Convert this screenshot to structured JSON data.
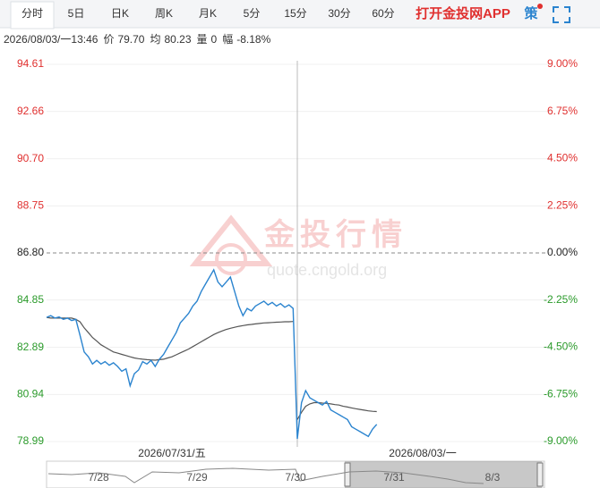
{
  "tabs": [
    "分时",
    "5日",
    "日K",
    "周K",
    "月K",
    "5分",
    "15分",
    "30分",
    "60分"
  ],
  "active_tab": 0,
  "app_link": "打开金投网APP",
  "strategy": "策",
  "info": {
    "time": "2026/08/03/一13:46",
    "items": [
      {
        "label": "价",
        "value": "79.70"
      },
      {
        "label": "均",
        "value": "80.23"
      },
      {
        "label": "量",
        "value": "0"
      },
      {
        "label": "幅",
        "value": "-8.18%"
      }
    ]
  },
  "watermark": {
    "title": "金投行情",
    "url": "quote.cngold.org"
  },
  "chart_data": {
    "type": "line",
    "ylim": [
      78.99,
      94.61
    ],
    "yticks": [
      94.61,
      92.66,
      {
        "value": 90.7,
        "label": "90.70"
      },
      88.75,
      {
        "value": 86.8,
        "label": "86.80"
      },
      84.85,
      82.89,
      80.94,
      78.99
    ],
    "y2lim": [
      -9,
      9
    ],
    "y2ticks": [
      {
        "value": 9,
        "label": "9.00%"
      },
      {
        "value": 6.75,
        "label": "6.75%"
      },
      {
        "value": 4.5,
        "label": "4.50%"
      },
      {
        "value": 2.25,
        "label": "2.25%"
      },
      {
        "value": 0,
        "label": "0.00%"
      },
      {
        "value": -2.25,
        "label": "-2.25%"
      },
      {
        "value": -4.5,
        "label": "-4.50%"
      },
      {
        "value": -6.75,
        "label": "-6.75%"
      },
      {
        "value": -9,
        "label": "-9.00%"
      }
    ],
    "reference_line": 86.8,
    "price_color": "#2b84cf",
    "average_color": "#555555",
    "up_color": "#e0302f",
    "down_color": "#2a9a2a",
    "days": [
      {
        "label": "2026/07/31/五",
        "price": [
          84.13,
          84.2,
          84.1,
          84.15,
          84.05,
          84.1,
          84.0,
          84.05,
          83.4,
          82.7,
          82.5,
          82.2,
          82.35,
          82.2,
          82.3,
          82.15,
          82.25,
          82.1,
          81.9,
          82.0,
          81.3,
          81.8,
          81.95,
          82.3,
          82.2,
          82.35,
          82.1,
          82.4,
          82.6,
          82.9,
          83.2,
          83.5,
          83.9,
          84.1,
          84.3,
          84.6,
          84.8,
          85.2,
          85.5,
          85.8,
          86.1,
          85.6,
          85.4,
          85.6,
          85.8,
          85.2,
          84.6,
          84.2,
          84.5,
          84.4,
          84.6,
          84.7,
          84.8,
          84.65,
          84.75,
          84.6,
          84.7,
          84.55,
          84.65,
          84.5
        ],
        "average": [
          84.13,
          84.1,
          84.1,
          84.1,
          84.1,
          84.1,
          84.1,
          84.05,
          83.95,
          83.7,
          83.5,
          83.3,
          83.15,
          83.0,
          82.9,
          82.8,
          82.7,
          82.65,
          82.6,
          82.55,
          82.5,
          82.45,
          82.42,
          82.4,
          82.38,
          82.37,
          82.36,
          82.38,
          82.4,
          82.45,
          82.5,
          82.58,
          82.66,
          82.74,
          82.82,
          82.92,
          83.02,
          83.12,
          83.22,
          83.32,
          83.42,
          83.5,
          83.57,
          83.63,
          83.68,
          83.72,
          83.76,
          83.79,
          83.82,
          83.84,
          83.86,
          83.88,
          83.9,
          83.91,
          83.92,
          83.93,
          83.94,
          83.95,
          83.95,
          83.96
        ]
      },
      {
        "label": "2026/08/03/一",
        "price": [
          79.1,
          80.6,
          81.1,
          80.8,
          80.7,
          80.6,
          80.5,
          80.65,
          80.3,
          80.2,
          80.1,
          80.0,
          79.9,
          79.6,
          79.5,
          79.4,
          79.3,
          79.2,
          79.5,
          79.7,
          null,
          null,
          null,
          null,
          null,
          null,
          null,
          null,
          null,
          null,
          null,
          null,
          null,
          null,
          null,
          null,
          null,
          null,
          null,
          null,
          null,
          null,
          null,
          null,
          null,
          null,
          null,
          null,
          null,
          null,
          null,
          null,
          null,
          null,
          null,
          null,
          null,
          null,
          null,
          null
        ],
        "average": [
          79.9,
          80.2,
          80.45,
          80.55,
          80.6,
          80.6,
          80.58,
          80.57,
          80.55,
          80.52,
          80.5,
          80.45,
          80.42,
          80.38,
          80.35,
          80.32,
          80.29,
          80.26,
          80.24,
          80.23,
          null,
          null,
          null,
          null,
          null,
          null,
          null,
          null,
          null,
          null,
          null,
          null,
          null,
          null,
          null,
          null,
          null,
          null,
          null,
          null,
          null,
          null,
          null,
          null,
          null,
          null,
          null,
          null,
          null,
          null,
          null,
          null,
          null,
          null,
          null,
          null,
          null,
          null,
          null,
          null
        ]
      }
    ],
    "navigator": [
      "7/28",
      "7/29",
      "7/30",
      "7/31",
      "8/3"
    ]
  }
}
